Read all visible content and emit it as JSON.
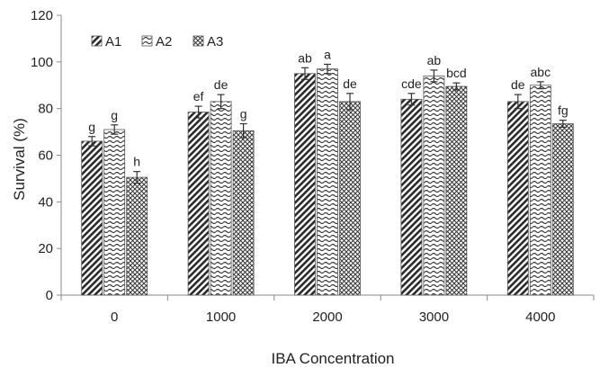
{
  "chart_data": {
    "type": "bar",
    "title": "",
    "xlabel": "IBA Concentration",
    "ylabel": "Survival (%)",
    "ylim": [
      0,
      120
    ],
    "yticks": [
      0,
      20,
      40,
      60,
      80,
      100,
      120
    ],
    "grid": false,
    "legend_position": "top-left",
    "categories": [
      "0",
      "1000",
      "2000",
      "3000",
      "4000"
    ],
    "series": [
      {
        "name": "A1",
        "pattern": "diagonal-hatch",
        "values": [
          66,
          78.5,
          95,
          84,
          83
        ],
        "errors": [
          2,
          2.5,
          2.5,
          2.5,
          3
        ],
        "labels": [
          "g",
          "ef",
          "ab",
          "cde",
          "de"
        ]
      },
      {
        "name": "A2",
        "pattern": "wave",
        "values": [
          71,
          83,
          97,
          94,
          90
        ],
        "errors": [
          2,
          3,
          2,
          2.5,
          1.5
        ],
        "labels": [
          "g",
          "de",
          "a",
          "ab",
          "abc"
        ]
      },
      {
        "name": "A3",
        "pattern": "crosshatch",
        "values": [
          50.5,
          70.5,
          83,
          89.5,
          73.5
        ],
        "errors": [
          2.5,
          3,
          3.5,
          1.5,
          1.5
        ],
        "labels": [
          "h",
          "g",
          "de",
          "bcd",
          "fg"
        ]
      }
    ]
  }
}
